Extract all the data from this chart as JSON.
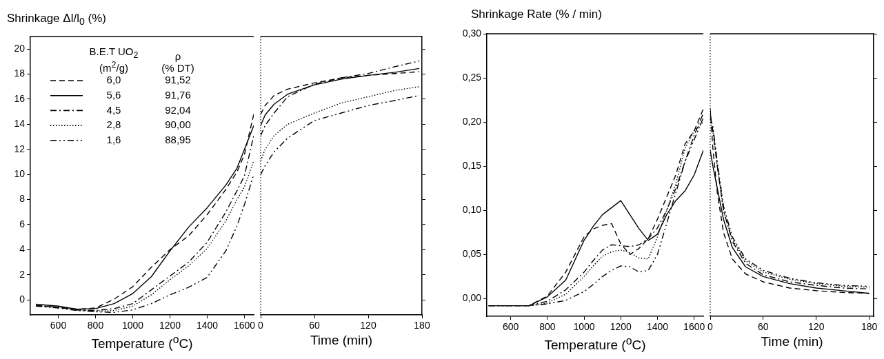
{
  "chart_data": [
    {
      "type": "line",
      "ylabel": "Shrinkage Δl/l$_{0}$ (%)",
      "xlabel": "Temperature ($^{o}$C)",
      "legend": "top left",
      "legend_title": "B.E.T UO$_{2}$\n(m$^{2}$/g)",
      "annotations": [
        "ρ\n(% DT)",
        "91,52",
        "91,76",
        "92,04",
        "90,00",
        "88,95"
      ],
      "xlim": [
        450,
        1650
      ],
      "xticks": [
        600,
        800,
        1000,
        1200,
        1400,
        1600
      ],
      "ylim": [
        -1.2,
        21
      ],
      "yticks": [
        0,
        2,
        4,
        6,
        8,
        10,
        12,
        14,
        16,
        18,
        20
      ],
      "grid": false,
      "x": [
        480,
        600,
        700,
        800,
        900,
        1000,
        1100,
        1200,
        1300,
        1400,
        1500,
        1560,
        1600,
        1650
      ],
      "series": [
        {
          "name": "6,0",
          "color": "#000000",
          "line_style": "dashed",
          "values": [
            -0.45,
            -0.6,
            -0.75,
            -0.65,
            0.05,
            1.05,
            2.6,
            4.0,
            5.1,
            6.8,
            8.8,
            10.2,
            11.6,
            14.8
          ]
        },
        {
          "name": "5,6",
          "color": "#000000",
          "line_style": "solid",
          "values": [
            -0.35,
            -0.5,
            -0.75,
            -0.7,
            -0.3,
            0.5,
            1.85,
            3.9,
            5.8,
            7.35,
            9.15,
            10.5,
            12.0,
            13.9
          ]
        },
        {
          "name": "4,5",
          "color": "#000000",
          "line_style": "dashdot",
          "values": [
            -0.45,
            -0.6,
            -0.8,
            -0.85,
            -0.7,
            -0.3,
            0.8,
            1.9,
            3.0,
            4.6,
            7.0,
            8.7,
            9.9,
            13.1
          ]
        },
        {
          "name": "2,8",
          "color": "#000000",
          "line_style": "dotted",
          "values": [
            -0.45,
            -0.6,
            -0.8,
            -0.9,
            -0.85,
            -0.5,
            0.4,
            1.6,
            2.7,
            4.1,
            6.3,
            8.0,
            9.0,
            11.1
          ]
        },
        {
          "name": "1,6",
          "color": "#000000",
          "line_style": "dashdotdot",
          "values": [
            -0.5,
            -0.65,
            -0.85,
            -0.95,
            -1.0,
            -0.8,
            -0.3,
            0.4,
            1.0,
            1.8,
            3.9,
            5.9,
            7.6,
            10.0
          ]
        }
      ]
    },
    {
      "type": "line",
      "xlabel": "Time (min)",
      "tick_labels": "x",
      "xlim": [
        0,
        180
      ],
      "xticks": [
        0,
        60,
        120,
        180
      ],
      "ylim": [
        -1.2,
        21
      ],
      "yticks": [
        0,
        2,
        4,
        6,
        8,
        10,
        12,
        14,
        16,
        18,
        20
      ],
      "grid": false,
      "ref_lines": [
        {
          "axis": "x",
          "value": 0,
          "line_style": "dotted",
          "color": "#000000"
        }
      ],
      "x": [
        0,
        5,
        15,
        30,
        60,
        90,
        120,
        150,
        177
      ],
      "series": [
        {
          "color": "#000000",
          "line_style": "dashed",
          "values": [
            14.8,
            15.5,
            16.3,
            16.8,
            17.3,
            17.7,
            17.9,
            18.05,
            18.2
          ]
        },
        {
          "color": "#000000",
          "line_style": "solid",
          "values": [
            13.9,
            14.75,
            15.6,
            16.4,
            17.15,
            17.6,
            17.9,
            18.15,
            18.45
          ]
        },
        {
          "color": "#000000",
          "line_style": "dashdot",
          "values": [
            13.1,
            13.9,
            14.9,
            16.2,
            17.2,
            17.7,
            18.05,
            18.6,
            19.05
          ]
        },
        {
          "color": "#000000",
          "line_style": "dotted",
          "values": [
            11.1,
            12.0,
            13.1,
            14.0,
            14.9,
            15.7,
            16.2,
            16.7,
            17.0
          ]
        },
        {
          "color": "#000000",
          "line_style": "dashdotdot",
          "values": [
            10.0,
            10.7,
            11.8,
            12.9,
            14.3,
            14.9,
            15.5,
            15.9,
            16.3
          ]
        }
      ]
    },
    {
      "type": "line",
      "ylabel": "Shrinkage Rate (% / min)",
      "xlabel": "Temperature ($^{o}$C)",
      "xlim": [
        470,
        1650
      ],
      "xticks": [
        600,
        800,
        1000,
        1200,
        1400,
        1600
      ],
      "ylim": [
        -0.02,
        0.3
      ],
      "yticks": [
        {
          "value": 0,
          "label": "0,00"
        },
        {
          "value": 0.05,
          "label": "0,05"
        },
        {
          "value": 0.1,
          "label": "0,10"
        },
        {
          "value": 0.15,
          "label": "0,15"
        },
        {
          "value": 0.2,
          "label": "0,20"
        },
        {
          "value": 0.25,
          "label": "0,25"
        },
        {
          "value": 0.3,
          "label": "0,30"
        }
      ],
      "grid": false,
      "x": [
        480,
        600,
        700,
        800,
        900,
        1000,
        1050,
        1100,
        1150,
        1200,
        1250,
        1300,
        1350,
        1400,
        1450,
        1500,
        1550,
        1600,
        1650
      ],
      "series": [
        {
          "color": "#000000",
          "line_style": "dashed",
          "values": [
            -0.008,
            -0.008,
            -0.008,
            0.003,
            0.03,
            0.07,
            0.079,
            0.083,
            0.085,
            0.062,
            0.05,
            0.057,
            0.068,
            0.09,
            0.115,
            0.14,
            0.175,
            0.19,
            0.215
          ]
        },
        {
          "color": "#000000",
          "line_style": "solid",
          "values": [
            -0.008,
            -0.008,
            -0.008,
            0.002,
            0.021,
            0.066,
            0.082,
            0.095,
            0.103,
            0.111,
            0.095,
            0.079,
            0.066,
            0.073,
            0.095,
            0.111,
            0.122,
            0.14,
            0.168
          ]
        },
        {
          "color": "#000000",
          "line_style": "dashdot",
          "values": [
            -0.008,
            -0.008,
            -0.008,
            -0.003,
            0.01,
            0.03,
            0.043,
            0.055,
            0.061,
            0.06,
            0.059,
            0.061,
            0.068,
            0.08,
            0.1,
            0.125,
            0.155,
            0.185,
            0.21
          ]
        },
        {
          "color": "#000000",
          "line_style": "dotted",
          "values": [
            -0.008,
            -0.008,
            -0.008,
            -0.005,
            0.005,
            0.025,
            0.037,
            0.048,
            0.053,
            0.055,
            0.052,
            0.046,
            0.045,
            0.07,
            0.1,
            0.13,
            0.17,
            0.19,
            0.2
          ]
        },
        {
          "color": "#000000",
          "line_style": "dashdotdot",
          "values": [
            -0.008,
            -0.008,
            -0.008,
            -0.006,
            -0.002,
            0.008,
            0.016,
            0.025,
            0.032,
            0.037,
            0.036,
            0.03,
            0.032,
            0.05,
            0.085,
            0.12,
            0.155,
            0.18,
            0.205
          ]
        }
      ]
    },
    {
      "type": "line",
      "xlabel": "Time (min)",
      "tick_labels": "x",
      "xlim": [
        0,
        185
      ],
      "xticks": [
        0,
        60,
        120,
        180
      ],
      "ylim": [
        -0.02,
        0.3
      ],
      "yticks": [
        0,
        0.05,
        0.1,
        0.15,
        0.2,
        0.25,
        0.3
      ],
      "grid": false,
      "ref_lines": [
        {
          "axis": "x",
          "value": 0,
          "line_style": "dotted",
          "color": "#000000"
        }
      ],
      "x": [
        0,
        3,
        8,
        15,
        25,
        40,
        60,
        90,
        120,
        150,
        180
      ],
      "series": [
        {
          "color": "#000000",
          "line_style": "dashed",
          "values": [
            0.215,
            0.17,
            0.12,
            0.075,
            0.045,
            0.028,
            0.019,
            0.012,
            0.009,
            0.007,
            0.006
          ]
        },
        {
          "color": "#000000",
          "line_style": "solid",
          "values": [
            0.168,
            0.15,
            0.125,
            0.09,
            0.058,
            0.036,
            0.025,
            0.017,
            0.012,
            0.009,
            0.006
          ]
        },
        {
          "color": "#000000",
          "line_style": "dashdot",
          "values": [
            0.21,
            0.19,
            0.15,
            0.1,
            0.065,
            0.04,
            0.027,
            0.019,
            0.015,
            0.012,
            0.011
          ]
        },
        {
          "color": "#000000",
          "line_style": "dotted",
          "values": [
            0.2,
            0.19,
            0.15,
            0.1,
            0.067,
            0.043,
            0.03,
            0.022,
            0.017,
            0.014,
            0.013
          ]
        },
        {
          "color": "#000000",
          "line_style": "dashdotdot",
          "values": [
            0.205,
            0.195,
            0.155,
            0.105,
            0.07,
            0.045,
            0.032,
            0.023,
            0.018,
            0.015,
            0.014
          ]
        }
      ]
    }
  ]
}
